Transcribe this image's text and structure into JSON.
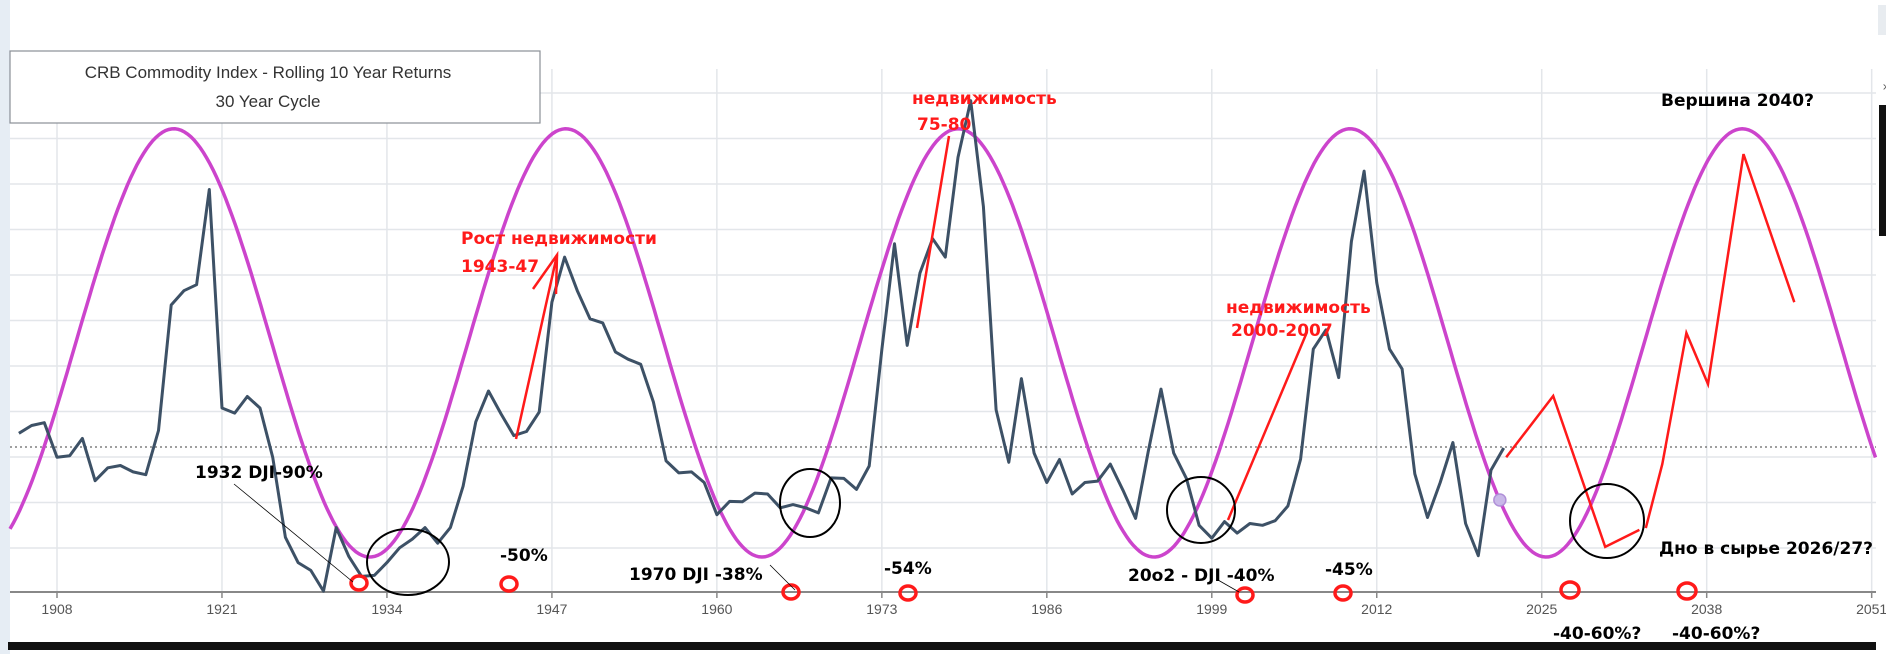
{
  "chart_data": {
    "type": "line",
    "title": "CRB Commodity Index - Rolling 10 Year Returns",
    "subtitle": "30 Year Cycle",
    "xlabel": "",
    "ylabel": "",
    "x_ticks": [
      "1908",
      "1921",
      "1934",
      "1947",
      "1960",
      "1973",
      "1986",
      "1999",
      "2012",
      "2025",
      "2038",
      "2051"
    ],
    "xlim": [
      1904.3,
      2051.3
    ],
    "ylim": [
      0,
      11.5
    ],
    "grid": true,
    "legend": "none",
    "reference_line": {
      "value": 3.15,
      "style": "dotted"
    },
    "colors": {
      "series": "#3d5166",
      "cycle": "#cc44cc",
      "forecast": "#ff1a1a",
      "marker": "#c9b8e8"
    },
    "series": [
      {
        "points": [
          [
            1905,
            3.45
          ],
          [
            1906,
            3.62
          ],
          [
            1907,
            3.68
          ],
          [
            1908,
            2.93
          ],
          [
            1909,
            2.96
          ],
          [
            1910,
            3.34
          ],
          [
            1911,
            2.42
          ],
          [
            1912,
            2.7
          ],
          [
            1913,
            2.75
          ],
          [
            1914,
            2.61
          ],
          [
            1915,
            2.55
          ],
          [
            1916,
            3.51
          ],
          [
            1917,
            6.24
          ],
          [
            1918,
            6.55
          ],
          [
            1919,
            6.68
          ],
          [
            1920,
            8.75
          ],
          [
            1921,
            4.0
          ],
          [
            1922,
            3.89
          ],
          [
            1923,
            4.25
          ],
          [
            1924,
            4.0
          ],
          [
            1925,
            2.93
          ],
          [
            1926,
            1.19
          ],
          [
            1927,
            0.64
          ],
          [
            1928,
            0.47
          ],
          [
            1929,
            0.02
          ],
          [
            1930,
            1.4
          ],
          [
            1931,
            0.77
          ],
          [
            1932,
            0.34
          ],
          [
            1933,
            0.36
          ],
          [
            1934,
            0.64
          ],
          [
            1935,
            0.96
          ],
          [
            1936,
            1.15
          ],
          [
            1937,
            1.4
          ],
          [
            1938,
            1.06
          ],
          [
            1939,
            1.4
          ],
          [
            1940,
            2.3
          ],
          [
            1941,
            3.7
          ],
          [
            1942,
            4.37
          ],
          [
            1943,
            3.87
          ],
          [
            1944,
            3.4
          ],
          [
            1945,
            3.49
          ],
          [
            1946,
            3.91
          ],
          [
            1947,
            6.3
          ],
          [
            1948,
            7.28
          ],
          [
            1949,
            6.55
          ],
          [
            1950,
            5.94
          ],
          [
            1951,
            5.85
          ],
          [
            1952,
            5.22
          ],
          [
            1953,
            5.06
          ],
          [
            1954,
            4.95
          ],
          [
            1955,
            4.13
          ],
          [
            1956,
            2.85
          ],
          [
            1957,
            2.59
          ],
          [
            1958,
            2.61
          ],
          [
            1959,
            2.38
          ],
          [
            1960,
            1.68
          ],
          [
            1961,
            1.97
          ],
          [
            1962,
            1.96
          ],
          [
            1963,
            2.15
          ],
          [
            1964,
            2.13
          ],
          [
            1965,
            1.83
          ],
          [
            1966,
            1.9
          ],
          [
            1967,
            1.83
          ],
          [
            1968,
            1.72
          ],
          [
            1969,
            2.48
          ],
          [
            1970,
            2.47
          ],
          [
            1971,
            2.23
          ],
          [
            1972,
            2.74
          ],
          [
            1973,
            5.28
          ],
          [
            1974,
            7.57
          ],
          [
            1975,
            5.36
          ],
          [
            1976,
            6.93
          ],
          [
            1977,
            7.68
          ],
          [
            1978,
            7.28
          ],
          [
            1979,
            9.45
          ],
          [
            1980,
            10.68
          ],
          [
            1981,
            8.38
          ],
          [
            1982,
            3.96
          ],
          [
            1983,
            2.82
          ],
          [
            1984,
            4.64
          ],
          [
            1985,
            3.02
          ],
          [
            1986,
            2.38
          ],
          [
            1987,
            2.88
          ],
          [
            1988,
            2.13
          ],
          [
            1989,
            2.38
          ],
          [
            1990,
            2.41
          ],
          [
            1991,
            2.78
          ],
          [
            1992,
            2.21
          ],
          [
            1993,
            1.6
          ],
          [
            1994,
            3.06
          ],
          [
            1995,
            4.41
          ],
          [
            1996,
            3.02
          ],
          [
            1997,
            2.47
          ],
          [
            1998,
            1.45
          ],
          [
            1999,
            1.17
          ],
          [
            2000,
            1.53
          ],
          [
            2001,
            1.28
          ],
          [
            2002,
            1.49
          ],
          [
            2003,
            1.45
          ],
          [
            2004,
            1.55
          ],
          [
            2005,
            1.87
          ],
          [
            2006,
            2.89
          ],
          [
            2007,
            5.28
          ],
          [
            2008,
            5.7
          ],
          [
            2009,
            4.66
          ],
          [
            2010,
            7.62
          ],
          [
            2011,
            9.15
          ],
          [
            2012,
            6.72
          ],
          [
            2013,
            5.28
          ],
          [
            2014,
            4.85
          ],
          [
            2015,
            2.57
          ],
          [
            2016,
            1.62
          ],
          [
            2017,
            2.38
          ],
          [
            2018,
            3.25
          ],
          [
            2019,
            1.49
          ],
          [
            2020,
            0.79
          ],
          [
            2021,
            2.65
          ],
          [
            2022,
            3.13
          ]
        ]
      }
    ],
    "cycle_wave": {
      "period_years": 30.9,
      "peak_year": 1917.2,
      "max": 10.07,
      "min": 0.76,
      "x_range": [
        1904.3,
        2051.3
      ]
    },
    "highlight_point": [
      2021.7,
      2.0
    ],
    "forecast_segments": [
      [
        [
          2022.2,
          2.93
        ],
        [
          2025.9,
          4.26
        ],
        [
          2030.0,
          0.98
        ],
        [
          2032.7,
          1.35
        ]
      ],
      [
        [
          2033.2,
          1.39
        ],
        [
          2034.5,
          2.78
        ],
        [
          2036.4,
          5.63
        ],
        [
          2038.1,
          4.52
        ],
        [
          2040.9,
          9.52
        ],
        [
          2044.9,
          6.3
        ]
      ]
    ],
    "annotations": {
      "rost": "Рост недвижимости",
      "rost_years": "1943-47",
      "dji1932": "1932 DJI-90%",
      "minus50": "-50%",
      "dji1970": "1970 DJI -38%",
      "nedv75": "недвижимость",
      "years75": "75-80",
      "minus54": "-54%",
      "nedv2000": "недвижимость",
      "years2000": "2000-2007",
      "dji2002": "20o2 - DJI -40%",
      "minus45": "-45%",
      "peak2040": "Вершина 2040?",
      "bottom2026": "Дно в сырье 2026/27?",
      "forecast1": "-40-60%?",
      "forecast2": "-40-60%?"
    }
  },
  "window": {
    "close_glyph": "×"
  }
}
